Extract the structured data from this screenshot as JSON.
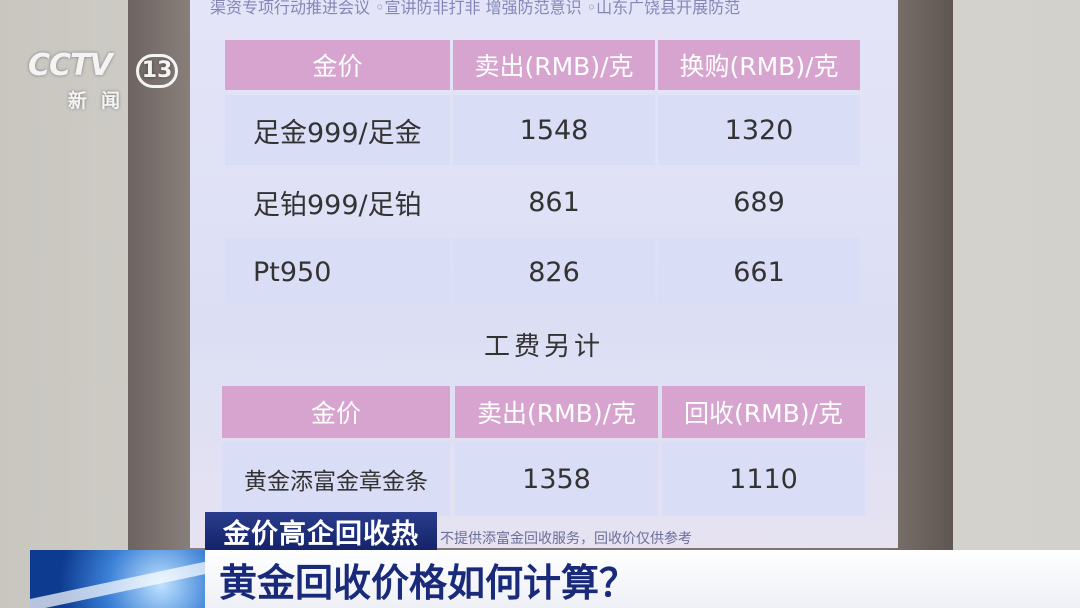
{
  "ticker": "渠资专项行动推进会议 ◦宣讲防非打非 增强防范意识 ◦山东广饶县开展防范",
  "channel_logo": {
    "brand": "CCTV",
    "number": "13",
    "subtitle": "新闻"
  },
  "table1": {
    "headers": [
      "金价",
      "卖出(RMB)/克",
      "换购(RMB)/克"
    ],
    "rows": [
      [
        "足金999/足金",
        "1548",
        "1320"
      ],
      [
        "足铂999/足铂",
        "861",
        "689"
      ],
      [
        "Pt950",
        "826",
        "661"
      ]
    ]
  },
  "note": "工费另计",
  "table2": {
    "headers": [
      "金价",
      "卖出(RMB)/克",
      "回收(RMB)/克"
    ],
    "rows": [
      [
        "黄金添富金章金条",
        "1358",
        "1110"
      ]
    ]
  },
  "fine_print": "不提供添富金回收服务，回收价仅供参考",
  "caption": {
    "tag": "金价高企回收热",
    "headline": "黄金回收价格如何计算？"
  },
  "colors": {
    "header_pink": "#d7a4cf",
    "cell_blue": "#d9def6",
    "caption_navy": "#1a2a7a"
  }
}
